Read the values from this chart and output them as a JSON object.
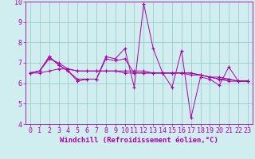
{
  "x": [
    0,
    1,
    2,
    3,
    4,
    5,
    6,
    7,
    8,
    9,
    10,
    11,
    12,
    13,
    14,
    15,
    16,
    17,
    18,
    19,
    20,
    21,
    22,
    23
  ],
  "series1": [
    6.5,
    6.6,
    7.3,
    6.9,
    6.6,
    6.1,
    6.2,
    6.2,
    7.3,
    7.2,
    7.7,
    5.8,
    9.9,
    7.7,
    6.5,
    5.8,
    7.6,
    4.3,
    6.3,
    6.2,
    5.9,
    6.8,
    6.1,
    6.1
  ],
  "series2": [
    6.5,
    6.6,
    7.3,
    6.9,
    6.6,
    6.2,
    6.2,
    6.2,
    7.2,
    7.1,
    7.2,
    6.5,
    6.5,
    6.5,
    6.5,
    6.5,
    6.5,
    6.5,
    6.4,
    6.3,
    6.2,
    6.1,
    6.1,
    6.1
  ],
  "series3": [
    6.5,
    6.6,
    7.2,
    7.0,
    6.7,
    6.6,
    6.6,
    6.6,
    6.6,
    6.6,
    6.6,
    6.6,
    6.6,
    6.5,
    6.5,
    6.5,
    6.5,
    6.5,
    6.4,
    6.3,
    6.2,
    6.2,
    6.1,
    6.1
  ],
  "series4": [
    6.5,
    6.5,
    6.6,
    6.7,
    6.7,
    6.6,
    6.6,
    6.6,
    6.6,
    6.6,
    6.5,
    6.5,
    6.5,
    6.5,
    6.5,
    6.5,
    6.5,
    6.4,
    6.4,
    6.3,
    6.3,
    6.2,
    6.1,
    6.1
  ],
  "line_color": "#aa00aa",
  "bg_color": "#d0eef0",
  "grid_color": "#a0cccc",
  "xlabel": "Windchill (Refroidissement éolien,°C)",
  "ylim": [
    4,
    10
  ],
  "xlim": [
    -0.5,
    23.5
  ],
  "yticks": [
    4,
    5,
    6,
    7,
    8,
    9,
    10
  ],
  "xticks": [
    0,
    1,
    2,
    3,
    4,
    5,
    6,
    7,
    8,
    9,
    10,
    11,
    12,
    13,
    14,
    15,
    16,
    17,
    18,
    19,
    20,
    21,
    22,
    23
  ],
  "tick_fontsize": 6.0,
  "xlabel_fontsize": 6.5,
  "marker_size": 3.0,
  "lw": 0.7
}
